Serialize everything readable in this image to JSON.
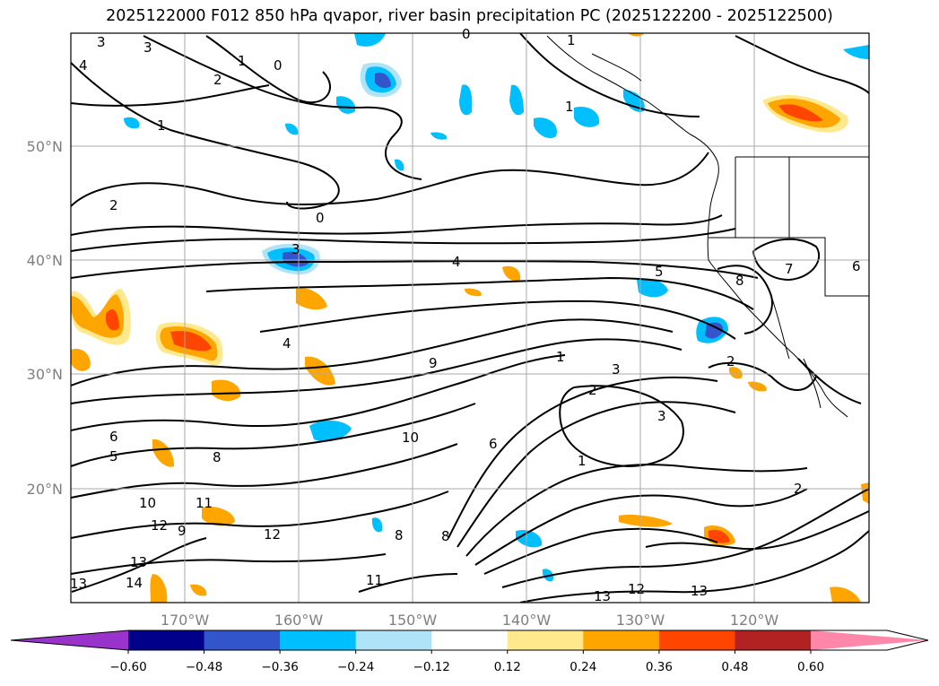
{
  "title": "2025122000 F012 850 hPa qvapor, river basin precipitation PC (2025122200 - 2025122500)",
  "map": {
    "lat_labels": [
      "50°N",
      "40°N",
      "30°N",
      "20°N"
    ],
    "lon_labels": [
      "170°W",
      "160°W",
      "150°W",
      "140°W",
      "130°W",
      "120°W"
    ],
    "contour_labels": [
      "3",
      "3",
      "4",
      "2",
      "1",
      "1",
      "0",
      "0",
      "1",
      "1",
      "2",
      "0",
      "3",
      "4",
      "5",
      "8",
      "7",
      "6",
      "4",
      "9",
      "1",
      "2",
      "3",
      "2",
      "3",
      "10",
      "6",
      "1",
      "2",
      "6",
      "5",
      "8",
      "10",
      "11",
      "12",
      "9",
      "12",
      "13",
      "14",
      "13",
      "8",
      "8",
      "11",
      "13",
      "12",
      "13"
    ]
  },
  "colorbar": {
    "ticks": [
      "−0.60",
      "−0.48",
      "−0.36",
      "−0.24",
      "−0.12",
      "0.12",
      "0.24",
      "0.36",
      "0.48",
      "0.60"
    ],
    "colors": {
      "under": "#9933cc",
      "bins": [
        "#00008b",
        "#3355cc",
        "#00bfff",
        "#aee3f8",
        "#ffffff",
        "#ffe98c",
        "#ffa500",
        "#ff4500",
        "#b22222",
        "#ff88aa"
      ]
    }
  }
}
